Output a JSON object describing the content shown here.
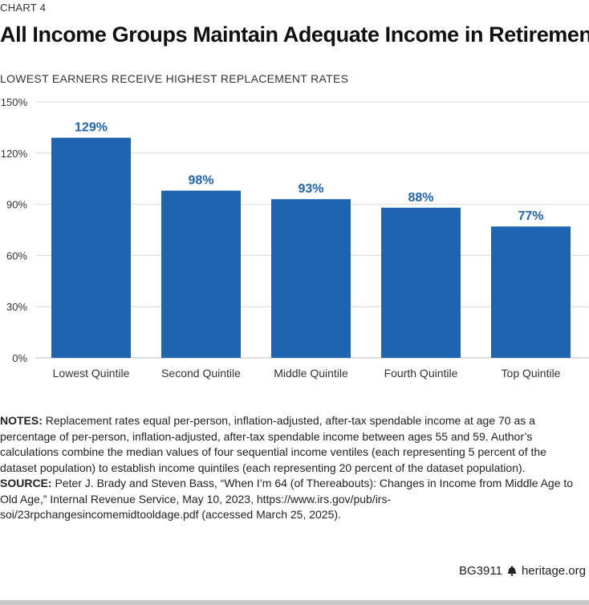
{
  "header": {
    "chart_label": "CHART 4",
    "title": "All Income Groups Maintain Adequate Income in Retirement",
    "subtitle": "LOWEST EARNERS RECEIVE HIGHEST REPLACEMENT RATES"
  },
  "chart_data": {
    "type": "bar",
    "categories": [
      "Lowest Quintile",
      "Second Quintile",
      "Middle Quintile",
      "Fourth Quintile",
      "Top Quintile"
    ],
    "values": [
      129,
      98,
      93,
      88,
      77
    ],
    "value_labels": [
      "129%",
      "98%",
      "93%",
      "88%",
      "77%"
    ],
    "yticks": [
      0,
      30,
      60,
      90,
      120,
      150
    ],
    "ytick_labels": [
      "0%",
      "30%",
      "60%",
      "90%",
      "120%",
      "150%"
    ],
    "ylim": [
      0,
      150
    ],
    "grid": true,
    "colors": {
      "bar": "#1f64b0",
      "label": "#1f64b0",
      "grid": "#d9d9d9"
    }
  },
  "notes": {
    "notes_label": "NOTES:",
    "notes_text": " Replacement rates equal per-person, inflation-adjusted, after-tax spendable income at age 70 as a percentage of per-person, inflation-adjusted, after-tax spendable income between ages 55 and 59. Author’s calculations combine the median values of four sequential income ventiles (each representing 5 percent of the dataset population) to establish income quintiles (each representing 20 percent of the dataset population).",
    "source_label": "SOURCE:",
    "source_text": " Peter J. Brady and Steven Bass, “When I’m 64 (of Thereabouts): Changes in Income from Middle Age to Old Age,” Internal Revenue Service, May 10, 2023, https://www.irs.gov/pub/irs-soi/23rpchangesincomemidtooldage.pdf (accessed March 25, 2025)."
  },
  "footer": {
    "report_id": "BG3911",
    "site": "heritage.org",
    "icon": "liberty-bell-icon"
  }
}
